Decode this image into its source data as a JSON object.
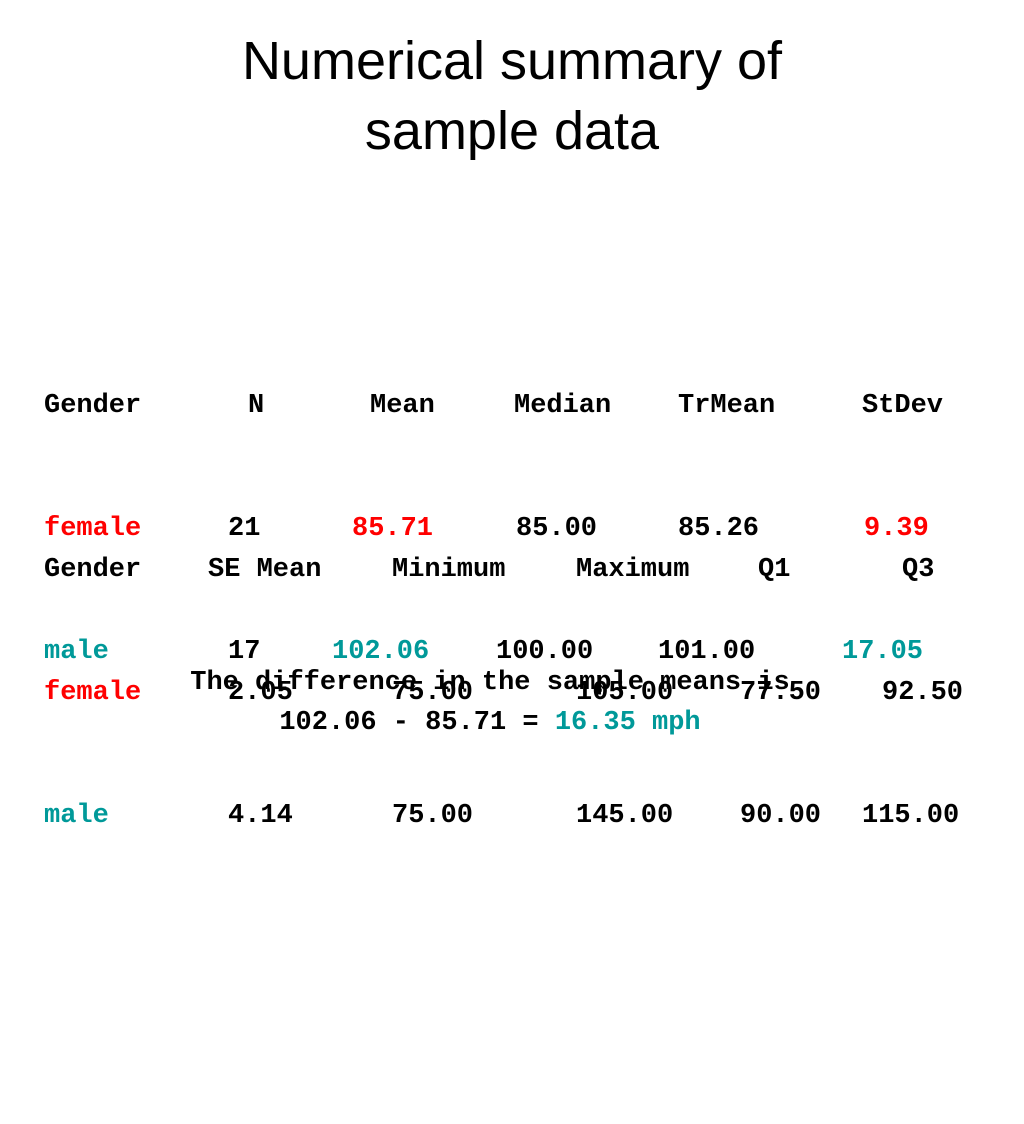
{
  "title": {
    "line1": "Numerical summary of",
    "line2": "sample data"
  },
  "colors": {
    "female": "#ff0000",
    "male": "#009999",
    "text": "#000000"
  },
  "table1": {
    "headers": [
      "Gender",
      "N",
      "Mean",
      "Median",
      "TrMean",
      "StDev"
    ],
    "rows": [
      {
        "gender": "female",
        "n": "21",
        "mean": "85.71",
        "median": "85.00",
        "trmean": "85.26",
        "stdev": "9.39"
      },
      {
        "gender": "male",
        "n": "17",
        "mean": "102.06",
        "median": "100.00",
        "trmean": "101.00",
        "stdev": "17.05"
      }
    ]
  },
  "table2": {
    "headers": [
      "Gender",
      "SE Mean",
      "Minimum",
      "Maximum",
      "Q1",
      "Q3"
    ],
    "rows": [
      {
        "gender": "female",
        "semean": "2.05",
        "minimum": "75.00",
        "maximum": "105.00",
        "q1": "77.50",
        "q3": "92.50"
      },
      {
        "gender": "male",
        "semean": "4.14",
        "minimum": "75.00",
        "maximum": "145.00",
        "q1": "90.00",
        "q3": "115.00"
      }
    ]
  },
  "conclusion": {
    "line1": "The difference in the sample means is",
    "line2_prefix": "102.06 - 85.71 = ",
    "line2_result": "16.35 mph"
  }
}
